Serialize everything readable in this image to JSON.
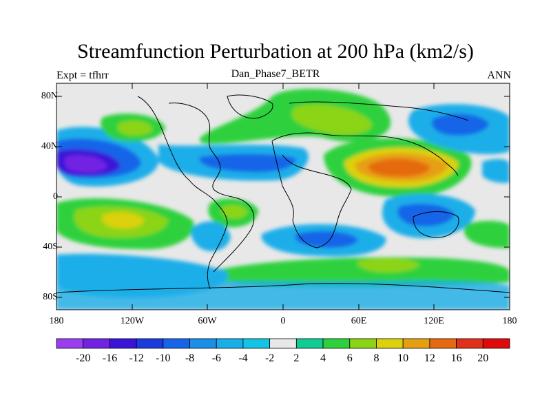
{
  "title": "Streamfunction Perturbation at 200 hPa (km2/s)",
  "left_subtitle": "Expt = tfhrr",
  "center_subtitle": "Dan_Phase7_BETR",
  "right_subtitle": "ANN",
  "y_axis_labels": [
    "80N",
    "40N",
    "0",
    "40S",
    "80S"
  ],
  "x_axis_labels": [
    "180",
    "120W",
    "60W",
    "0",
    "60E",
    "120E",
    "180"
  ],
  "colorbar": {
    "labels": [
      "-20",
      "-16",
      "-12",
      "-10",
      "-8",
      "-6",
      "-4",
      "-2",
      "2",
      "4",
      "6",
      "8",
      "10",
      "12",
      "16",
      "20"
    ],
    "colors": [
      "#9b3ef0",
      "#7222e2",
      "#3a15d8",
      "#1a3cdc",
      "#1665e8",
      "#1b8ee6",
      "#1aaee9",
      "#13c4e4",
      "#e8e8e8",
      "#10cc92",
      "#2ed13c",
      "#8cd416",
      "#dcd10d",
      "#e79f12",
      "#e56a0f",
      "#e0301a",
      "#e00a0a"
    ]
  },
  "colors": {
    "background_neutral": "#e8e8e8",
    "coastline": "#000000"
  }
}
